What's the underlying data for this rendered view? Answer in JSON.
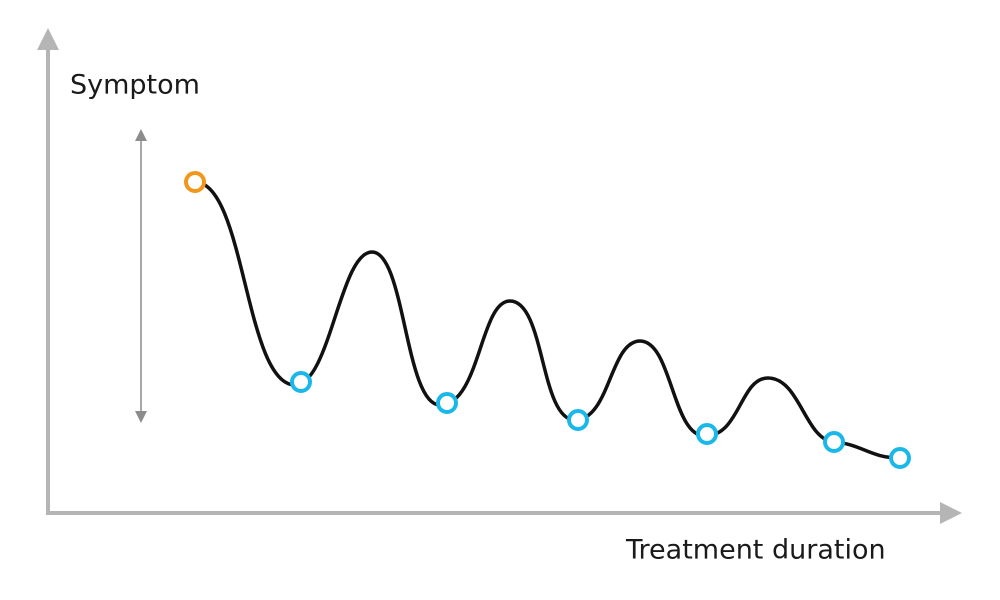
{
  "y_axis_label": "Symptom",
  "x_axis_label": "Treatment duration"
}
